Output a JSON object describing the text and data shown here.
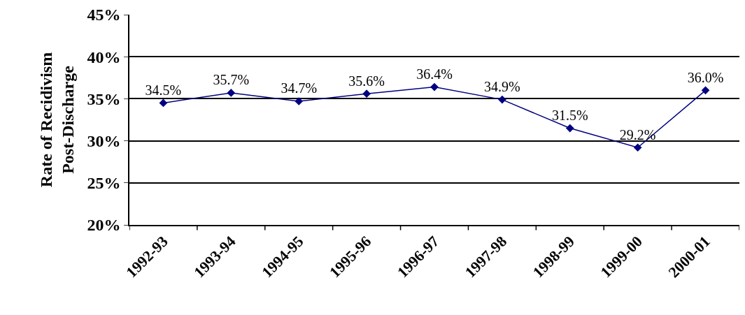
{
  "chart_data": {
    "type": "line",
    "ylabel": "Rate of Recidivism\nPost-Discharge",
    "categories": [
      "1992-93",
      "1993-94",
      "1994-95",
      "1995-96",
      "1996-97",
      "1997-98",
      "1998-99",
      "1999-00",
      "2000-01"
    ],
    "series": [
      {
        "color": "#000080",
        "values": [
          34.5,
          35.7,
          34.7,
          35.6,
          36.4,
          34.9,
          31.5,
          29.2,
          36.0
        ],
        "value_labels": [
          "34.5%",
          "35.7%",
          "34.7%",
          "35.6%",
          "36.4%",
          "34.9%",
          "31.5%",
          "29.2%",
          "36.0%"
        ]
      }
    ],
    "ylim": [
      20,
      45
    ],
    "yticks": [
      {
        "value": 20,
        "label": "20%"
      },
      {
        "value": 25,
        "label": "25%"
      },
      {
        "value": 30,
        "label": "30%"
      },
      {
        "value": 35,
        "label": "35%"
      },
      {
        "value": 40,
        "label": "40%"
      },
      {
        "value": 45,
        "label": "45%"
      }
    ],
    "grid": "y",
    "legend": false,
    "marker": "diamond",
    "line_style": "solid"
  }
}
